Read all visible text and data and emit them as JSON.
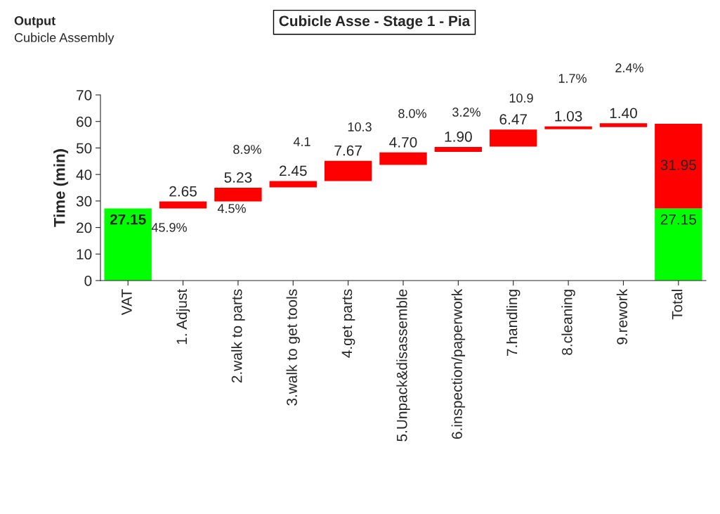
{
  "chart_data": {
    "type": "bar",
    "title": "Cubicle Asse - Stage 1 - Pia",
    "ylabel": "Time (min)",
    "categories": [
      "VAT",
      "1. Adjust",
      "2.walk to parts",
      "3.walk to get tools",
      "4.get parts",
      "5.Unpack&disassemble",
      "6.inspection/paperwork",
      "7.handling",
      "8.cleaning",
      "9.rework",
      "Total"
    ],
    "series": [
      {
        "color": "#00ff00",
        "values": [
          27.15,
          null,
          null,
          null,
          null,
          null,
          null,
          null,
          null,
          null,
          27.15
        ],
        "value_labels": [
          "27.15",
          null,
          null,
          null,
          null,
          null,
          null,
          null,
          null,
          null,
          "27.15"
        ]
      },
      {
        "color": "#ff0000",
        "values": [
          null,
          2.65,
          5.23,
          2.45,
          7.67,
          4.7,
          1.9,
          6.47,
          1.03,
          1.4,
          31.95
        ],
        "base": [
          null,
          27.15,
          29.8,
          35.1,
          37.5,
          43.6,
          48.5,
          50.5,
          57.1,
          57.9,
          27.15
        ],
        "value_labels": [
          null,
          "2.65",
          "5.23",
          "2.45",
          "7.67",
          "4.70",
          "1.90",
          "6.47",
          "1.03",
          "1.40",
          "31.95"
        ]
      }
    ],
    "ylim": [
      0,
      70
    ],
    "yticks": [
      0,
      10,
      20,
      30,
      40,
      50,
      60,
      70
    ],
    "grid": false,
    "legend": false,
    "annotations": [
      "Output",
      "Cubicle Assembly",
      "45.9%",
      "4.5%",
      "8.9%",
      "4.1",
      "10.3",
      "8.0%",
      "3.2%",
      "10.9",
      "1.7%",
      "2.4%"
    ]
  }
}
